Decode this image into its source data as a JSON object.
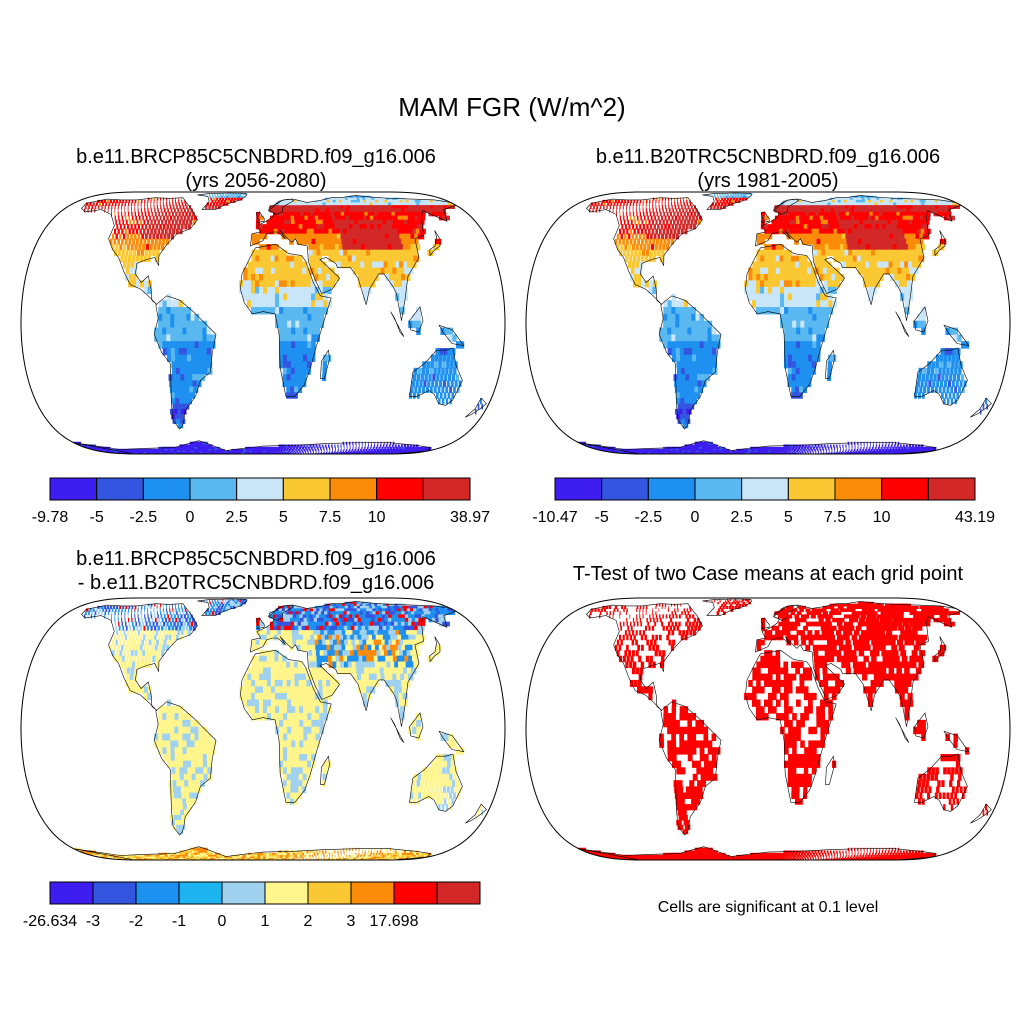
{
  "title": "MAM FGR (W/m^2)",
  "panels": [
    {
      "id": "case1",
      "title_lines": [
        "b.e11.BRCP85C5CNBDRD.f09_g16.006",
        "(yrs 2056-2080)"
      ],
      "colorbar": {
        "colors": [
          "#3d1df0",
          "#3355e0",
          "#1e90f0",
          "#5ab8f0",
          "#c8e6f8",
          "#fac832",
          "#fa8c0a",
          "#ff0000",
          "#d22828"
        ],
        "labels": [
          "-9.78",
          "-5",
          "-2.5",
          "0",
          "2.5",
          "5",
          "7.5",
          "10",
          "38.97"
        ]
      }
    },
    {
      "id": "case2",
      "title_lines": [
        "b.e11.B20TRC5CNBDRD.f09_g16.006",
        "(yrs 1981-2005)"
      ],
      "colorbar": {
        "colors": [
          "#3d1df0",
          "#3355e0",
          "#1e90f0",
          "#5ab8f0",
          "#c8e6f8",
          "#fac832",
          "#fa8c0a",
          "#ff0000",
          "#d22828"
        ],
        "labels": [
          "-10.47",
          "-5",
          "-2.5",
          "0",
          "2.5",
          "5",
          "7.5",
          "10",
          "43.19"
        ]
      }
    },
    {
      "id": "diff",
      "title_lines": [
        "b.e11.BRCP85C5CNBDRD.f09_g16.006",
        "- b.e11.B20TRC5CNBDRD.f09_g16.006"
      ],
      "colorbar": {
        "colors": [
          "#3d1df0",
          "#3355e0",
          "#1e90f0",
          "#1eb4f0",
          "#a0d2f0",
          "#fff58c",
          "#fac832",
          "#fa8c0a",
          "#ff0000",
          "#d22828"
        ],
        "labels": [
          "-26.634",
          "-3",
          "-2",
          "-1",
          "0",
          "1",
          "2",
          "3",
          "17.698"
        ]
      }
    },
    {
      "id": "ttest",
      "title_lines": [
        "T-Test of two Case means at each grid point"
      ],
      "note": "Cells are significant at 0.1 level"
    }
  ]
}
